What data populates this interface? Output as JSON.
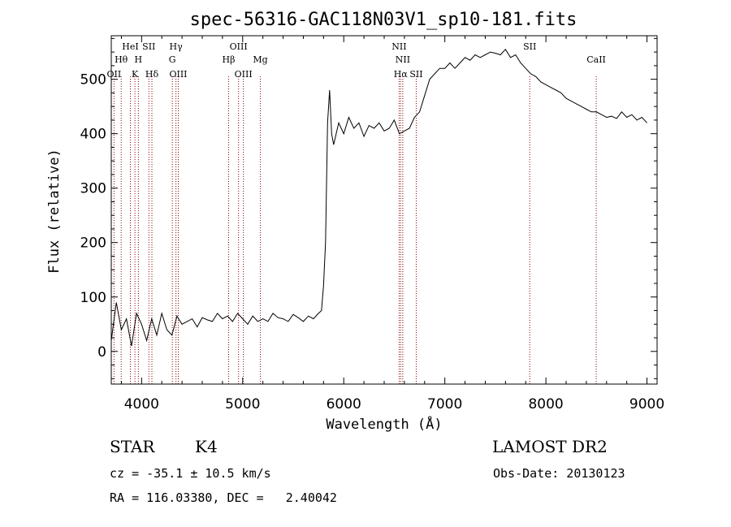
{
  "chart_data": {
    "type": "line",
    "title": "spec-56316-GAC118N03V1_sp10-181.fits",
    "xlabel": "Wavelength (Å)",
    "ylabel": "Flux (relative)",
    "xlim": [
      3700,
      9100
    ],
    "ylim": [
      -60,
      580
    ],
    "xticks": [
      4000,
      5000,
      6000,
      7000,
      8000,
      9000
    ],
    "yticks": [
      0,
      100,
      200,
      300,
      400,
      500
    ],
    "grid": false,
    "line_color": "#000000",
    "marker_color": "#8b0000",
    "series": [
      {
        "x": [
          3700,
          3750,
          3800,
          3850,
          3900,
          3950,
          4000,
          4050,
          4100,
          4150,
          4200,
          4250,
          4300,
          4350,
          4400,
          4450,
          4500,
          4550,
          4600,
          4650,
          4700,
          4750,
          4800,
          4850,
          4900,
          4950,
          5000,
          5050,
          5100,
          5150,
          5200,
          5250,
          5300,
          5350,
          5400,
          5450,
          5500,
          5550,
          5600,
          5650,
          5700,
          5750,
          5780,
          5800,
          5820,
          5840,
          5860,
          5880,
          5900,
          5950,
          6000,
          6050,
          6100,
          6150,
          6200,
          6250,
          6300,
          6350,
          6400,
          6450,
          6500,
          6550,
          6600,
          6650,
          6700,
          6750,
          6800,
          6850,
          6900,
          6950,
          7000,
          7050,
          7100,
          7150,
          7200,
          7250,
          7300,
          7350,
          7400,
          7450,
          7500,
          7550,
          7600,
          7650,
          7700,
          7750,
          7800,
          7850,
          7900,
          7950,
          8000,
          8050,
          8100,
          8150,
          8200,
          8250,
          8300,
          8350,
          8400,
          8450,
          8500,
          8550,
          8600,
          8650,
          8700,
          8750,
          8800,
          8850,
          8900,
          8950,
          9000
        ],
        "y": [
          20,
          90,
          40,
          60,
          10,
          70,
          50,
          20,
          60,
          30,
          70,
          40,
          30,
          65,
          50,
          55,
          60,
          45,
          62,
          58,
          55,
          70,
          60,
          65,
          55,
          70,
          60,
          50,
          65,
          55,
          60,
          55,
          70,
          62,
          60,
          55,
          68,
          62,
          55,
          65,
          60,
          70,
          75,
          120,
          200,
          420,
          480,
          400,
          380,
          420,
          400,
          430,
          410,
          420,
          395,
          415,
          410,
          420,
          405,
          410,
          425,
          400,
          405,
          410,
          430,
          440,
          470,
          500,
          510,
          520,
          520,
          530,
          520,
          530,
          540,
          535,
          545,
          540,
          545,
          550,
          548,
          545,
          555,
          540,
          545,
          530,
          520,
          510,
          505,
          495,
          490,
          485,
          480,
          475,
          465,
          460,
          455,
          450,
          445,
          440,
          440,
          435,
          430,
          432,
          428,
          440,
          430,
          435,
          425,
          430,
          420
        ]
      }
    ],
    "line_markers": [
      {
        "label": "OII",
        "x": 3727,
        "row": 3
      },
      {
        "label": "Hθ",
        "x": 3798,
        "row": 2
      },
      {
        "label": "HeI",
        "x": 3889,
        "row": 1
      },
      {
        "label": "K",
        "x": 3934,
        "row": 3
      },
      {
        "label": "H",
        "x": 3968,
        "row": 2
      },
      {
        "label": "SII",
        "x": 4072,
        "row": 1
      },
      {
        "label": "Hδ",
        "x": 4102,
        "row": 3
      },
      {
        "label": "Hγ",
        "x": 4340,
        "row": 1
      },
      {
        "label": "G",
        "x": 4304,
        "row": 2
      },
      {
        "label": "OIII",
        "x": 4363,
        "row": 3
      },
      {
        "label": "Hβ",
        "x": 4861,
        "row": 2
      },
      {
        "label": "OIII",
        "x": 4959,
        "row": 1
      },
      {
        "label": "OIII",
        "x": 5007,
        "row": 3
      },
      {
        "label": "Mg",
        "x": 5175,
        "row": 2
      },
      {
        "label": "NII",
        "x": 6548,
        "row": 1
      },
      {
        "label": "NII",
        "x": 6584,
        "row": 2
      },
      {
        "label": "Hα",
        "x": 6563,
        "row": 3
      },
      {
        "label": "SII",
        "x": 6717,
        "row": 3
      },
      {
        "label": "SII",
        "x": 7840,
        "row": 1
      },
      {
        "label": "CaII",
        "x": 8498,
        "row": 2
      }
    ]
  },
  "footer": {
    "object_type": "STAR",
    "subclass": "K4",
    "survey": "LAMOST DR2",
    "cz": "cz = -35.1 ± 10.5 km/s",
    "obs_date": "Obs-Date: 20130123",
    "coords": "RA = 116.03380, DEC =   2.40042"
  }
}
